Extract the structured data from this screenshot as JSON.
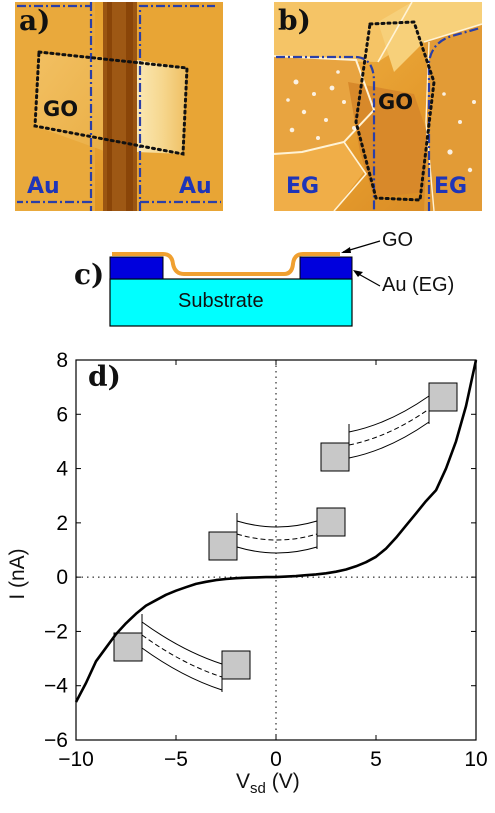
{
  "panel_a": {
    "label": "a)",
    "region_label": "GO",
    "left_electrode": "Au",
    "right_electrode": "Au",
    "colors": {
      "electrode_line": "#2a3fa8",
      "electrode_text": "#1f35b8"
    }
  },
  "panel_b": {
    "label": "b)",
    "region_label": "GO",
    "left_electrode": "EG",
    "right_electrode": "EG",
    "colors": {
      "electrode_line": "#2a3fa8",
      "electrode_text": "#1f35b8"
    }
  },
  "panel_c": {
    "label": "c)",
    "substrate_label": "Substrate",
    "go_label": "GO",
    "electrode_label": "Au (EG)",
    "colors": {
      "substrate": "#00ffff",
      "electrode": "#0000dd",
      "go_film": "#f0a030"
    }
  },
  "chart_data": {
    "type": "line",
    "panel_label": "d)",
    "xlabel_main": "V",
    "xlabel_sub": "sd",
    "xlabel_unit": "(V)",
    "ylabel": "I (nA)",
    "xlim": [
      -10,
      10
    ],
    "ylim": [
      -6,
      8
    ],
    "xticks": [
      -10,
      -5,
      0,
      5,
      10
    ],
    "xtick_labels": [
      "−10",
      "−5",
      "0",
      "5",
      "10"
    ],
    "yticks": [
      -6,
      -4,
      -2,
      0,
      2,
      4,
      6,
      8
    ],
    "ytick_labels": [
      "−6",
      "−4",
      "−2",
      "0",
      "2",
      "4",
      "6",
      "8"
    ],
    "zero_lines": "dotted",
    "series": [
      {
        "x": [
          -10,
          -9.5,
          -9,
          -8.5,
          -8,
          -7.5,
          -7,
          -6.5,
          -6,
          -5.5,
          -5,
          -4.5,
          -4,
          -3.5,
          -3,
          -2.5,
          -2,
          -1.5,
          -1,
          -0.5,
          0,
          0.5,
          1,
          1.5,
          2,
          2.5,
          3,
          3.5,
          4,
          4.5,
          5,
          5.5,
          6,
          6.5,
          7,
          7.5,
          8,
          8.5,
          9,
          9.5,
          10
        ],
        "y": [
          -4.6,
          -3.9,
          -3.1,
          -2.6,
          -2.1,
          -1.7,
          -1.35,
          -1.05,
          -0.85,
          -0.65,
          -0.5,
          -0.37,
          -0.25,
          -0.17,
          -0.11,
          -0.07,
          -0.04,
          -0.02,
          -0.01,
          0.0,
          0.0,
          0.02,
          0.04,
          0.07,
          0.1,
          0.14,
          0.2,
          0.28,
          0.4,
          0.55,
          0.75,
          1.05,
          1.45,
          1.9,
          2.35,
          2.8,
          3.2,
          4.0,
          5.0,
          6.3,
          8.0
        ]
      }
    ],
    "band_diagram_insets": 3,
    "colors": {
      "line": "#000000",
      "contact_box": "#c8c8c8"
    }
  }
}
